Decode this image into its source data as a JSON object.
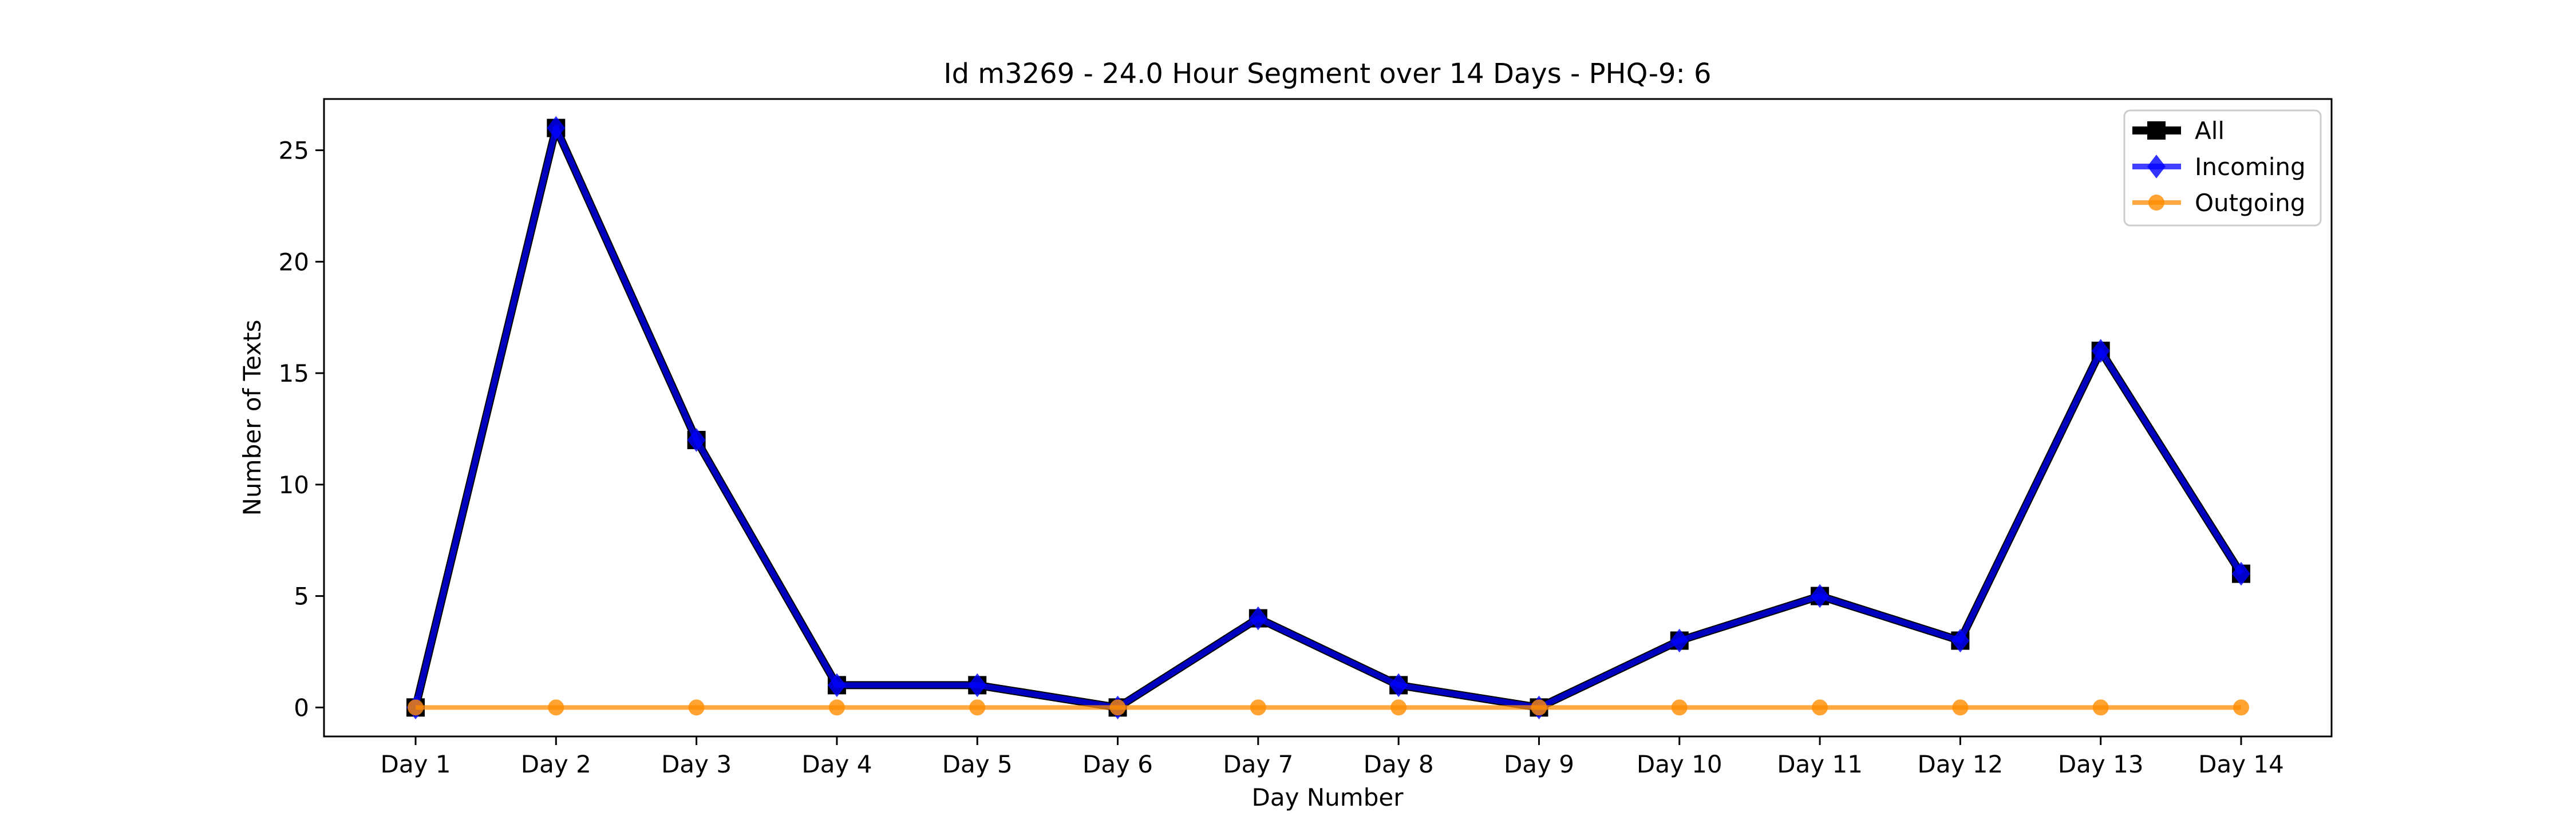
{
  "chart_data": {
    "type": "line",
    "title": "Id m3269 - 24.0 Hour Segment over 14 Days - PHQ-9: 6",
    "xlabel": "Day Number",
    "ylabel": "Number of Texts",
    "categories": [
      "Day 1",
      "Day 2",
      "Day 3",
      "Day 4",
      "Day 5",
      "Day 6",
      "Day 7",
      "Day 8",
      "Day 9",
      "Day 10",
      "Day 11",
      "Day 12",
      "Day 13",
      "Day 14"
    ],
    "ylim": [
      -1.3,
      27.3
    ],
    "yticks": [
      0,
      5,
      10,
      15,
      20,
      25
    ],
    "grid": false,
    "legend_position": "top-right",
    "series": [
      {
        "name": "All",
        "color": "#000000",
        "marker": "square",
        "values": [
          0,
          26,
          12,
          1,
          1,
          0,
          4,
          1,
          0,
          3,
          5,
          3,
          16,
          6
        ]
      },
      {
        "name": "Incoming",
        "color": "#0000ff",
        "marker": "diamond",
        "values": [
          0,
          26,
          12,
          1,
          1,
          0,
          4,
          1,
          0,
          3,
          5,
          3,
          16,
          6
        ]
      },
      {
        "name": "Outgoing",
        "color": "#ff8c00",
        "marker": "circle",
        "values": [
          0,
          0,
          0,
          0,
          0,
          0,
          0,
          0,
          0,
          0,
          0,
          0,
          0,
          0
        ]
      }
    ]
  }
}
